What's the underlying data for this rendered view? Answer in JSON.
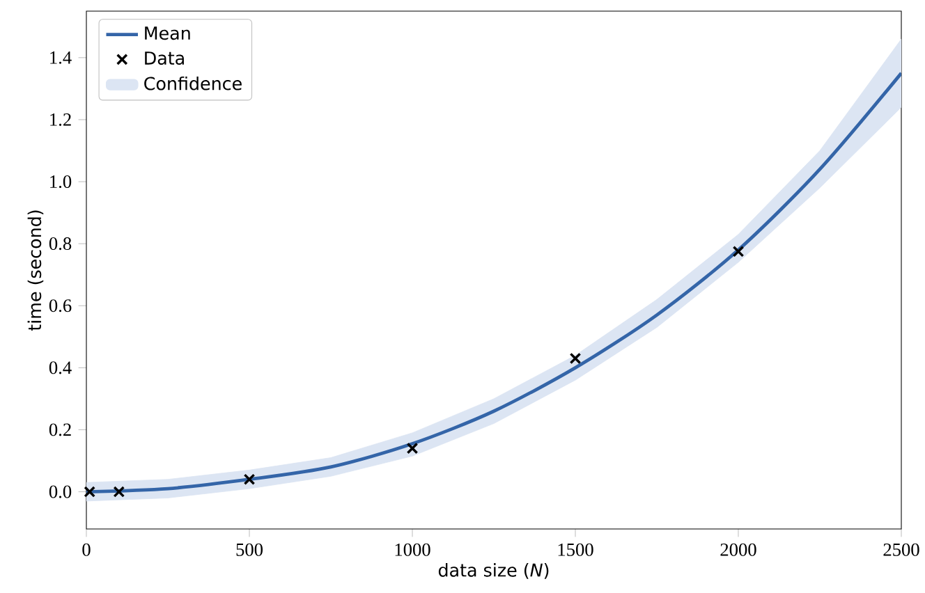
{
  "chart_data": {
    "type": "line",
    "xlabel": "data size (*N*)",
    "ylabel": "time (second)",
    "xlim": [
      0,
      2500
    ],
    "ylim": [
      -0.12,
      1.55
    ],
    "xticks": [
      0,
      500,
      1000,
      1500,
      2000,
      2500
    ],
    "yticks": [
      {
        "value": 0,
        "label": "0.0"
      },
      {
        "value": 0.2,
        "label": "0.2"
      },
      {
        "value": 0.4,
        "label": "0.4"
      },
      {
        "value": 0.6,
        "label": "0.6"
      },
      {
        "value": 0.8,
        "label": "0.8"
      },
      {
        "value": 1.0,
        "label": "1.0"
      },
      {
        "value": 1.2,
        "label": "1.2"
      },
      {
        "value": 1.4,
        "label": "1.4"
      }
    ],
    "legend": "top left",
    "grid": false,
    "series": [
      {
        "name": "Mean",
        "color": "#3465a8",
        "x": [
          0,
          250,
          500,
          750,
          1000,
          1250,
          1500,
          1750,
          2000,
          2250,
          2500
        ],
        "values": [
          0.0,
          0.01,
          0.04,
          0.08,
          0.155,
          0.26,
          0.4,
          0.57,
          0.78,
          1.04,
          1.35
        ],
        "lower": [
          -0.03,
          -0.02,
          0.01,
          0.05,
          0.115,
          0.22,
          0.36,
          0.53,
          0.74,
          0.98,
          1.24
        ],
        "upper": [
          0.03,
          0.04,
          0.07,
          0.11,
          0.19,
          0.3,
          0.44,
          0.62,
          0.83,
          1.1,
          1.46
        ]
      },
      {
        "name": "Data",
        "type": "scatter",
        "marker": "cross",
        "color": "#000000",
        "x": [
          10,
          100,
          500,
          1000,
          1500,
          2000
        ],
        "values": [
          0.0,
          0.0,
          0.04,
          0.14,
          0.43,
          0.775
        ]
      },
      {
        "name": "Confidence",
        "type": "area",
        "color": "#dce5f3"
      }
    ]
  }
}
